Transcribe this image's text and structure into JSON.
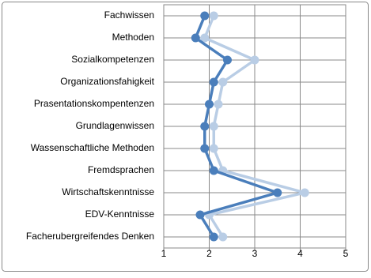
{
  "chart_data": {
    "type": "line",
    "orientation": "horizontal",
    "categories": [
      "Fachwissen",
      "Methoden",
      "Sozialkompetenzen",
      "Organizationsfahigkeit",
      "Prasentationskompentenzen",
      "Grundlagenwissen",
      "Wassenschaftliche Methoden",
      "Fremdsprachen",
      "Wirtschaftskenntnisse",
      "EDV-Kenntnisse",
      "Facherubergreifendes Denken"
    ],
    "series": [
      {
        "color": "#b9cde5",
        "values": [
          2.1,
          1.9,
          3.0,
          2.3,
          2.2,
          2.1,
          2.1,
          2.3,
          4.1,
          2.0,
          2.3
        ]
      },
      {
        "color": "#4a7ebb",
        "values": [
          1.9,
          1.7,
          2.4,
          2.1,
          2.0,
          1.9,
          1.9,
          2.1,
          3.5,
          1.8,
          2.1
        ]
      }
    ],
    "xlim": [
      1,
      5
    ],
    "xticks": [
      1,
      2,
      3,
      4,
      5
    ],
    "grid": true
  }
}
